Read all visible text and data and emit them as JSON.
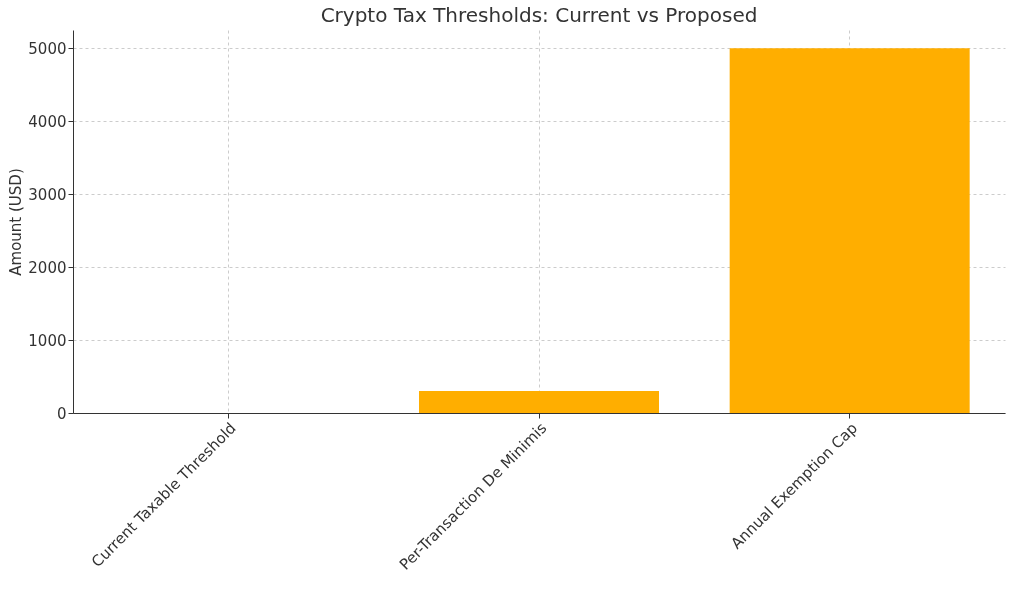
{
  "chart_data": {
    "type": "bar",
    "title": "Crypto Tax Thresholds: Current vs Proposed",
    "ylabel": "Amount (USD)",
    "categories": [
      "Current Taxable Threshold",
      "Per-Transaction De Minimis",
      "Annual Exemption Cap"
    ],
    "values": [
      0,
      300,
      5000
    ],
    "color": "#ffae00",
    "ylim": [
      0,
      5250
    ],
    "yticks": [
      0,
      1000,
      2000,
      3000,
      4000,
      5000
    ],
    "grid": true
  }
}
